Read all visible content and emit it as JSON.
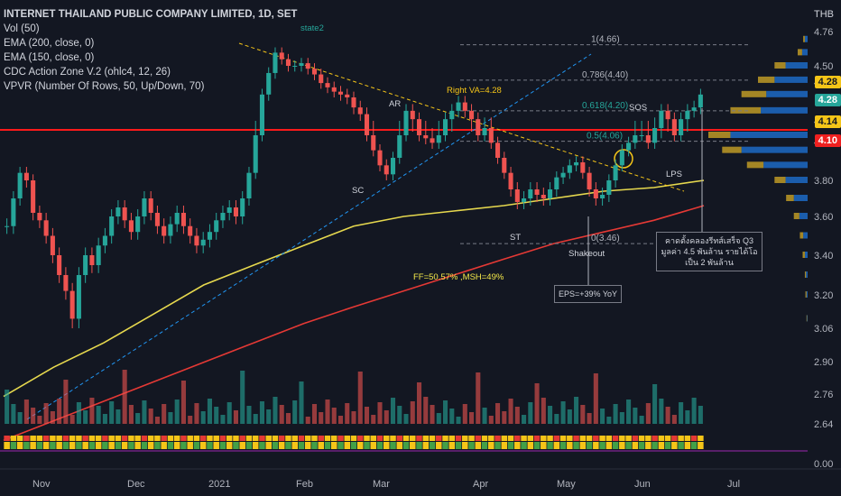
{
  "chart": {
    "title": "INTERNET THAILAND PUBLIC COMPANY LIMITED, 1D, SET",
    "currency": "THB",
    "indicators": [
      "Vol (50)",
      "EMA (200, close, 0)",
      "EMA (150, close, 0)",
      "CDC Action Zone V.2 (ohlc4, 12, 26)",
      "VPVR (Number Of Rows, 50, Up/Down, 70)"
    ],
    "y_ticks": [
      "4.76",
      "4.50",
      "4.28",
      "4.14",
      "4.10",
      "3.80",
      "3.60",
      "3.40",
      "3.20",
      "3.06",
      "2.90",
      "2.76",
      "2.64",
      "0.00"
    ],
    "x_ticks": [
      "Nov",
      "Dec",
      "2021",
      "Feb",
      "Mar",
      "Apr",
      "May",
      "Jun",
      "Jul"
    ],
    "price_badges": [
      {
        "label": "4.28",
        "color": "#f5c518",
        "text": "#131722"
      },
      {
        "label": "4.28",
        "color": "#26a69a",
        "text": "#ffffff"
      },
      {
        "label": "4.14",
        "color": "#f5c518",
        "text": "#131722"
      },
      {
        "label": "4.10",
        "color": "#ef2020",
        "text": "#ffffff"
      }
    ],
    "fib_levels": [
      {
        "label": "1(4.66)",
        "value": 4.66
      },
      {
        "label": "0.786(4.40)",
        "value": 4.4
      },
      {
        "label": "0.618(4.20)",
        "value": 4.2
      },
      {
        "label": "0.5(4.06)",
        "value": 4.06
      },
      {
        "label": "0(3.46)",
        "value": 3.46
      }
    ],
    "annotations": {
      "state": "state2",
      "right_va": "Right VA=4.28",
      "ar": "AR",
      "sc": "SC",
      "st": "ST",
      "shakeout": "Shakeout",
      "sos": "SOS",
      "lps": "LPS",
      "ff": "FF=50.57% ,MSH=49%",
      "eps": "EPS=+39% YoY",
      "thai_note": "คาดตั้งคลองรีทส์เสร็จ Q3 มูลค่า 4.5 พันล้าน รายได้โอเป็น 2 พันล้าน"
    },
    "colors": {
      "bull": "#26a69a",
      "bear": "#ef5350",
      "ema_yellow": "#e6d84e",
      "ema_red": "#e53935",
      "support_line": "#ff1a1a",
      "vp_up": "#1e6fd0",
      "vp_down": "#c9a227"
    }
  },
  "chart_data": {
    "type": "candlestick",
    "title": "INTERNET THAILAND PUBLIC COMPANY LIMITED, 1D, SET",
    "y_unit": "THB",
    "ylim": [
      3.0,
      4.8
    ],
    "x_range": [
      "Oct 2020",
      "Jul 2021"
    ],
    "close_series": [
      3.55,
      3.7,
      3.85,
      3.8,
      3.62,
      3.58,
      3.5,
      3.4,
      3.3,
      3.22,
      3.1,
      3.3,
      3.4,
      3.35,
      3.45,
      3.5,
      3.6,
      3.65,
      3.58,
      3.52,
      3.6,
      3.7,
      3.62,
      3.55,
      3.5,
      3.56,
      3.62,
      3.55,
      3.5,
      3.45,
      3.48,
      3.52,
      3.58,
      3.62,
      3.65,
      3.6,
      3.7,
      3.85,
      4.1,
      4.3,
      4.45,
      4.6,
      4.55,
      4.5,
      4.5,
      4.52,
      4.48,
      4.44,
      4.38,
      4.35,
      4.32,
      4.3,
      4.28,
      4.22,
      4.18,
      4.1,
      4.0,
      3.9,
      3.84,
      3.95,
      4.1,
      4.2,
      4.15,
      4.1,
      4.08,
      4.05,
      4.1,
      4.15,
      4.2,
      4.25,
      4.2,
      4.15,
      4.1,
      4.12,
      4.05,
      3.95,
      3.85,
      3.75,
      3.68,
      3.7,
      3.75,
      3.72,
      3.7,
      3.75,
      3.82,
      3.85,
      3.9,
      3.92,
      3.85,
      3.75,
      3.7,
      3.72,
      3.8,
      3.9,
      4.0,
      4.05,
      4.1,
      4.1,
      4.05,
      4.12,
      4.2,
      4.15,
      4.1,
      4.15,
      4.2,
      4.22,
      4.3
    ],
    "ema_150": [
      2.78,
      2.9,
      3.0,
      3.12,
      3.25,
      3.35,
      3.45,
      3.55,
      3.6,
      3.63,
      3.66,
      3.7,
      3.74,
      3.76,
      3.8
    ],
    "ema_200": [
      2.6,
      2.68,
      2.76,
      2.84,
      2.92,
      3.0,
      3.08,
      3.15,
      3.22,
      3.3,
      3.38,
      3.46,
      3.52,
      3.58,
      3.66
    ],
    "volume_ylim": [
      0,
      3
    ],
    "vp_levels": [
      4.7,
      4.6,
      4.5,
      4.4,
      4.3,
      4.2,
      4.1,
      4.0,
      3.9,
      3.8,
      3.7,
      3.6,
      3.5,
      3.4,
      3.3,
      3.2,
      3.1
    ],
    "vp_up": [
      5,
      10,
      40,
      60,
      75,
      85,
      140,
      120,
      80,
      40,
      25,
      15,
      8,
      5,
      3,
      2,
      1
    ],
    "vp_down": [
      3,
      8,
      20,
      30,
      45,
      55,
      40,
      35,
      30,
      20,
      14,
      10,
      6,
      4,
      2,
      2,
      1
    ]
  }
}
